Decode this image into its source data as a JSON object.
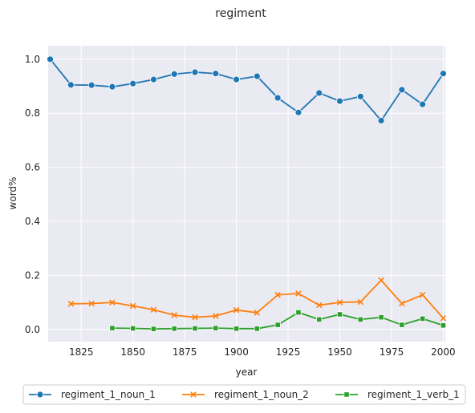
{
  "chart_data": {
    "type": "line",
    "title": "regiment",
    "xlabel": "year",
    "ylabel": "word%",
    "xlim": [
      1809,
      2001
    ],
    "ylim": [
      -0.045,
      1.05
    ],
    "xticks": [
      "1825",
      "1850",
      "1875",
      "1900",
      "1925",
      "1950",
      "1975",
      "2000"
    ],
    "yticks": [
      "0.0",
      "0.2",
      "0.4",
      "0.6",
      "0.8",
      "1.0"
    ],
    "grid": true,
    "legend_position": "bottom",
    "series": [
      {
        "name": "regiment_1_noun_1",
        "color": "#1f77b4",
        "marker": "circle",
        "x": [
          1810,
          1820,
          1830,
          1840,
          1850,
          1860,
          1870,
          1880,
          1890,
          1900,
          1910,
          1920,
          1930,
          1940,
          1950,
          1960,
          1970,
          1980,
          1990,
          2000
        ],
        "y": [
          1.0,
          0.905,
          0.904,
          0.898,
          0.91,
          0.925,
          0.945,
          0.952,
          0.947,
          0.925,
          0.937,
          0.857,
          0.803,
          0.875,
          0.845,
          0.862,
          0.773,
          0.887,
          0.833,
          0.947
        ]
      },
      {
        "name": "regiment_1_noun_2",
        "color": "#ff7f0e",
        "marker": "x",
        "x": [
          1820,
          1830,
          1840,
          1850,
          1860,
          1870,
          1880,
          1890,
          1900,
          1910,
          1920,
          1930,
          1940,
          1950,
          1960,
          1970,
          1980,
          1990,
          2000
        ],
        "y": [
          0.095,
          0.096,
          0.1,
          0.087,
          0.073,
          0.053,
          0.045,
          0.05,
          0.072,
          0.062,
          0.128,
          0.133,
          0.09,
          0.1,
          0.102,
          0.182,
          0.096,
          0.128,
          0.042
        ]
      },
      {
        "name": "regiment_1_verb_1",
        "color": "#2ca02c",
        "marker": "square",
        "x": [
          1840,
          1850,
          1860,
          1870,
          1880,
          1890,
          1900,
          1910,
          1920,
          1930,
          1940,
          1950,
          1960,
          1970,
          1980,
          1990,
          2000
        ],
        "y": [
          0.005,
          0.004,
          0.002,
          0.003,
          0.004,
          0.005,
          0.003,
          0.003,
          0.017,
          0.063,
          0.037,
          0.056,
          0.037,
          0.045,
          0.017,
          0.04,
          0.015
        ]
      }
    ]
  }
}
